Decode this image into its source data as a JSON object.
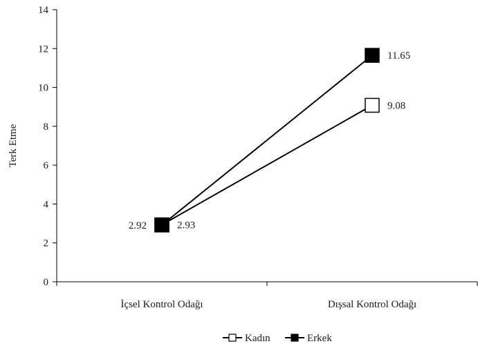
{
  "chart_data": {
    "type": "line",
    "title": "",
    "xlabel": "",
    "ylabel": "Terk Etme",
    "categories": [
      "İçsel Kontrol Odağı",
      "Dışsal Kontrol Odağı"
    ],
    "ylim": [
      0,
      14
    ],
    "yticks": [
      0,
      2,
      4,
      6,
      8,
      10,
      12,
      14
    ],
    "grid": false,
    "legend_position": "bottom",
    "series": [
      {
        "name": "Kadın",
        "values": [
          2.93,
          9.08
        ],
        "labels": [
          "2.93",
          "9.08"
        ],
        "marker": "hollow-square",
        "color": "#000000"
      },
      {
        "name": "Erkek",
        "values": [
          2.92,
          11.65
        ],
        "labels": [
          "2.92",
          "11.65"
        ],
        "marker": "filled-square",
        "color": "#000000"
      }
    ]
  }
}
